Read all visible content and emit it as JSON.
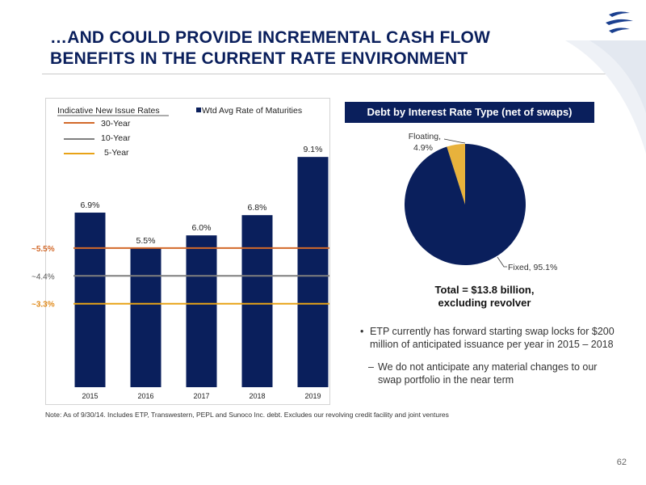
{
  "slide": {
    "title_line1": "…AND COULD PROVIDE INCREMENTAL CASH FLOW",
    "title_line2": "BENEFITS IN THE CURRENT RATE ENVIRONMENT",
    "note": "Note: As of 9/30/14. Includes ETP, Transwestern, PEPL and Sunoco Inc. debt. Excludes our revolving credit facility and joint ventures",
    "page_number": "62"
  },
  "colors": {
    "navy": "#0a1f5c",
    "rate_30y": "#d2692a",
    "rate_10y": "#7f7f7f",
    "rate_5y": "#e8a317",
    "floating": "#e8b23c"
  },
  "chart_data": [
    {
      "type": "bar",
      "categories": [
        "2015",
        "2016",
        "2017",
        "2018",
        "2019"
      ],
      "series": [
        {
          "name": "Wtd Avg Rate of Maturities",
          "values": [
            6.9,
            5.5,
            6.0,
            6.8,
            9.1
          ]
        }
      ],
      "data_labels": [
        "6.9%",
        "5.5%",
        "6.0%",
        "6.8%",
        "9.1%"
      ],
      "ylim": [
        0,
        10.0
      ],
      "reference_lines": [
        {
          "name": "30-Year",
          "value": 5.5,
          "label": "~5.5%"
        },
        {
          "name": "10-Year",
          "value": 4.4,
          "label": "~4.4%"
        },
        {
          "name": "5-Year",
          "value": 3.3,
          "label": "~3.3%"
        }
      ],
      "legend_title": "Indicative New Issue Rates",
      "grid": false
    },
    {
      "type": "pie",
      "title": "Debt by Interest Rate Type (net of swaps)",
      "slices": [
        {
          "label": "Fixed, 95.1%",
          "value": 95.1
        },
        {
          "label": "Floating,",
          "label2": "4.9%",
          "value": 4.9
        }
      ],
      "total_line1": "Total = $13.8 billion,",
      "total_line2": "excluding revolver"
    }
  ],
  "bullets": {
    "main": "ETP currently has forward starting swap locks for $200 million of anticipated issuance per year in 2015 – 2018",
    "sub": "We do not anticipate any material changes to our swap portfolio in the near term",
    "bullet_char": "•",
    "dash_char": "–"
  }
}
